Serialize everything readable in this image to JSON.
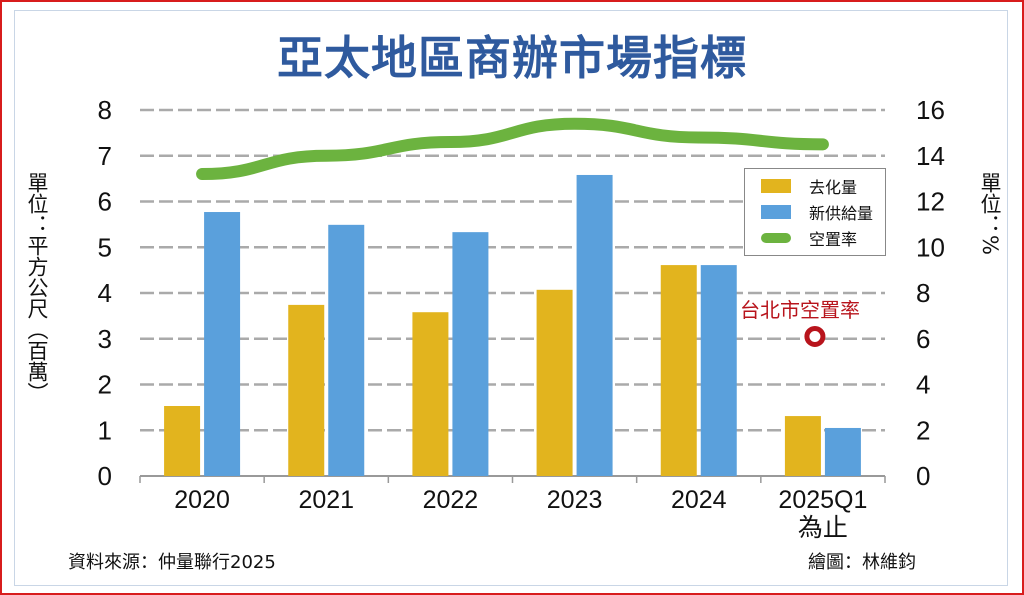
{
  "chart_data": {
    "type": "bar",
    "title": "亞太地區商辦市場指標",
    "categories": [
      "2020",
      "2021",
      "2022",
      "2023",
      "2024",
      "2025Q1"
    ],
    "category_sublabels": [
      "",
      "",
      "",
      "",
      "",
      "為止"
    ],
    "ylabel": "單位：平方公尺（百萬）",
    "y2label": "單位：%",
    "ylim": [
      0,
      8
    ],
    "y2lim": [
      0,
      16
    ],
    "yticks": [
      "0",
      "1",
      "2",
      "3",
      "4",
      "5",
      "6",
      "7",
      "8"
    ],
    "y2ticks": [
      "0",
      "2",
      "4",
      "6",
      "8",
      "10",
      "12",
      "14",
      "16"
    ],
    "grid": true,
    "legend_placement": "right",
    "series": [
      {
        "name": "去化量",
        "type": "bar",
        "axis": "left",
        "color": "#e2b41e",
        "values": [
          1.53,
          3.74,
          3.58,
          4.07,
          4.61,
          1.31
        ]
      },
      {
        "name": "新供給量",
        "type": "bar",
        "axis": "left",
        "color": "#5aa0dc",
        "values": [
          5.77,
          5.49,
          5.33,
          6.58,
          4.61,
          1.05
        ]
      },
      {
        "name": "空置率",
        "type": "line",
        "axis": "right",
        "color": "#6cb33f",
        "values": [
          13.2,
          14.0,
          14.6,
          15.4,
          14.8,
          14.5
        ]
      }
    ],
    "annotations": [
      {
        "text": "台北市空置率",
        "category": "2025Q1",
        "value": 6.1,
        "axis": "right",
        "color": "#b8141c"
      }
    ]
  },
  "footer": {
    "source": "資料來源：仲量聯行2025",
    "credit": "繪圖：林維鈞"
  }
}
